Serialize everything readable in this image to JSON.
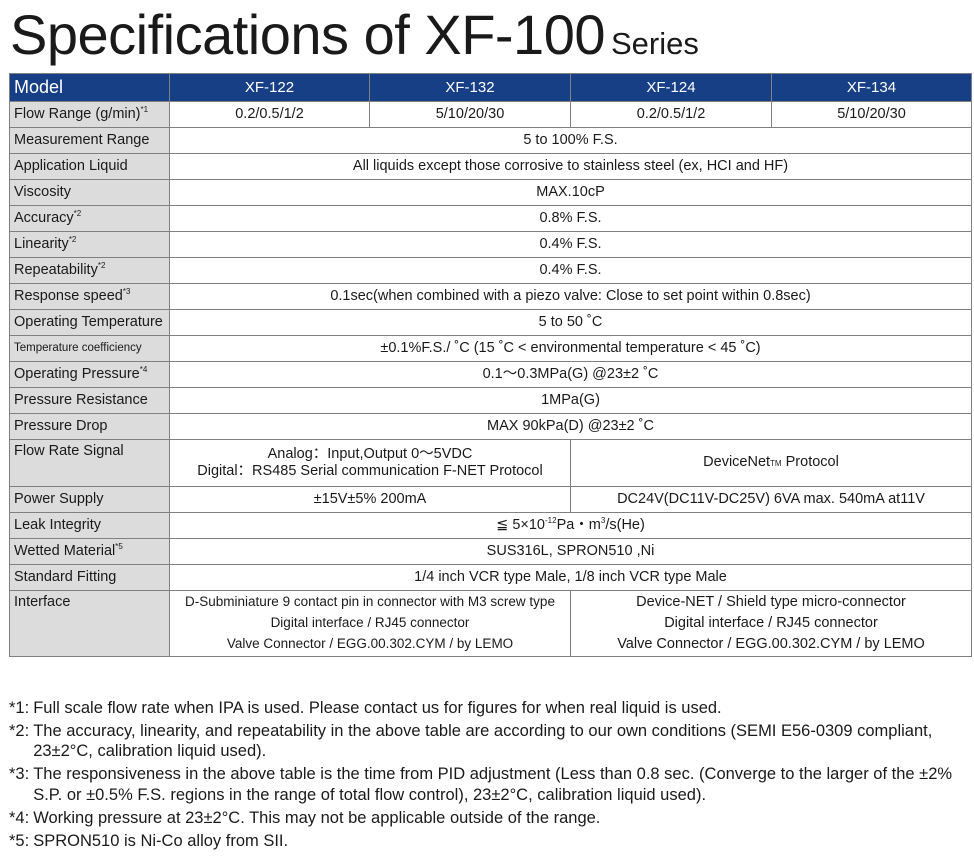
{
  "title": {
    "main": "Specifications of XF-100",
    "suffix": "Series"
  },
  "table": {
    "header_label": "Model",
    "models": [
      "XF-122",
      "XF-132",
      "XF-124",
      "XF-134"
    ],
    "flow_range": {
      "label": "Flow Range (g/min)",
      "mark": "*1",
      "values": [
        "0.2/0.5/1/2",
        "5/10/20/30",
        "0.2/0.5/1/2",
        "5/10/20/30"
      ]
    },
    "measurement_range": {
      "label": "Measurement Range",
      "value": "5 to 100%  F.S."
    },
    "application_liquid": {
      "label": "Application Liquid",
      "value": "All liquids except those corrosive to stainless steel (ex, HCI and HF)"
    },
    "viscosity": {
      "label": "Viscosity",
      "value": "MAX.10cP"
    },
    "accuracy": {
      "label": "Accuracy",
      "mark": "*2",
      "value": "0.8% F.S."
    },
    "linearity": {
      "label": "Linearity",
      "mark": "*2",
      "value": "0.4% F.S."
    },
    "repeatability": {
      "label": "Repeatability",
      "mark": "*2",
      "value": "0.4% F.S."
    },
    "response_speed": {
      "label": "Response speed",
      "mark": "*3",
      "value": "0.1sec(when combined with a piezo valve: Close to set point within 0.8sec)"
    },
    "operating_temperature": {
      "label": "Operating Temperature",
      "value": "5 to 50 ˚C"
    },
    "temperature_coefficiency": {
      "label": "Temperature coefficiency",
      "value": "±0.1%F.S./ ˚C  (15 ˚C < environmental temperature < 45 ˚C)"
    },
    "operating_pressure": {
      "label": "Operating Pressure",
      "mark": "*4",
      "value": "0.1～0.3MPa(G)  @23±2 ˚C"
    },
    "pressure_resistance": {
      "label": "Pressure Resistance",
      "value": "1MPa(G)"
    },
    "pressure_drop": {
      "label": "Pressure Drop",
      "value": "MAX 90kPa(D) @23±2 ˚C"
    },
    "flow_rate_signal": {
      "label": "Flow Rate Signal",
      "left_line1": "Analog：Input,Output  0～5VDC",
      "left_line2": "Digital：RS485  Serial communication  F-NET Protocol",
      "right_pre": "DeviceNet",
      "right_tm": "TM",
      "right_post": "  Protocol"
    },
    "power_supply": {
      "label": "Power Supply",
      "left": "±15V±5%  200mA",
      "right": "DC24V(DC11V-DC25V)  6VA max.  540mA at11V"
    },
    "leak_integrity": {
      "label": "Leak Integrity",
      "pre": "≦ 5×10",
      "exp": "-12",
      "mid": "Pa・m",
      "exp2": "3",
      "post": "/s(He)"
    },
    "wetted_material": {
      "label": "Wetted Material",
      "mark": "*5",
      "value": "SUS316L, SPRON510 ,Ni"
    },
    "standard_fitting": {
      "label": "Standard Fitting",
      "value": "1/4 inch VCR type Male, 1/8 inch VCR type Male"
    },
    "interface": {
      "label": "Interface",
      "left": [
        "D-Subminiature 9 contact pin in connector with M3 screw type",
        "Digital interface / RJ45 connector",
        "Valve Connector / EGG.00.302.CYM / by LEMO"
      ],
      "right": [
        "Device-NET / Shield type micro-connector",
        "Digital interface / RJ45 connector",
        "Valve Connector / EGG.00.302.CYM / by LEMO"
      ]
    }
  },
  "notes": [
    {
      "mark": "*1:",
      "text": "Full scale flow rate when IPA is used. Please contact us for figures for when real liquid is used."
    },
    {
      "mark": "*2:",
      "text": "The accuracy, linearity, and repeatability in the above table are according to our own conditions (SEMI E56-0309 compliant, 23±2°C, calibration liquid used)."
    },
    {
      "mark": "*3:",
      "text": "The responsiveness in the above table is the time from PID adjustment (Less than 0.8 sec. (Converge to the larger of the ±2% S.P. or ±0.5% F.S. regions in the range of total flow control), 23±2°C, calibration liquid used)."
    },
    {
      "mark": "*4:",
      "text": "Working pressure at 23±2°C. This may not be applicable outside of the range."
    },
    {
      "mark": "*5:",
      "text": "SPRON510 is Ni-Co alloy from SII."
    }
  ]
}
